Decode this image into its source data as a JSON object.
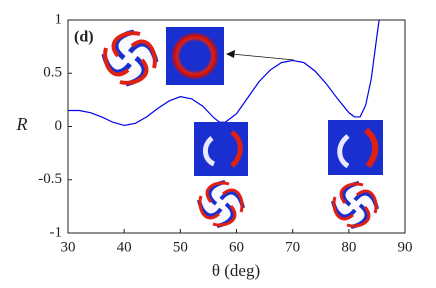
{
  "chart_data": {
    "type": "line",
    "panel_label": "(d)",
    "x_label": "θ (deg)",
    "y_label": "R",
    "x": [
      30,
      32,
      34,
      36,
      38,
      40,
      42,
      44,
      46,
      48,
      50,
      52,
      54,
      56,
      57,
      58,
      60,
      62,
      64,
      66,
      68,
      70,
      72,
      74,
      76,
      78,
      80,
      81,
      82,
      83,
      84,
      85,
      85.4
    ],
    "series": [
      {
        "name": "R",
        "color": "#0000ee",
        "values": [
          0.15,
          0.15,
          0.13,
          0.09,
          0.04,
          0.01,
          0.03,
          0.09,
          0.17,
          0.24,
          0.28,
          0.26,
          0.19,
          0.08,
          0.04,
          0.04,
          0.12,
          0.27,
          0.42,
          0.53,
          0.6,
          0.62,
          0.6,
          0.52,
          0.4,
          0.26,
          0.13,
          0.09,
          0.09,
          0.2,
          0.45,
          0.85,
          1
        ]
      }
    ],
    "xlim": [
      30,
      90
    ],
    "xticks": [
      30,
      40,
      50,
      60,
      70,
      80,
      90
    ],
    "ylim": [
      -1,
      1
    ],
    "yticks": [
      -1,
      -0.5,
      0,
      0.5,
      1
    ]
  }
}
